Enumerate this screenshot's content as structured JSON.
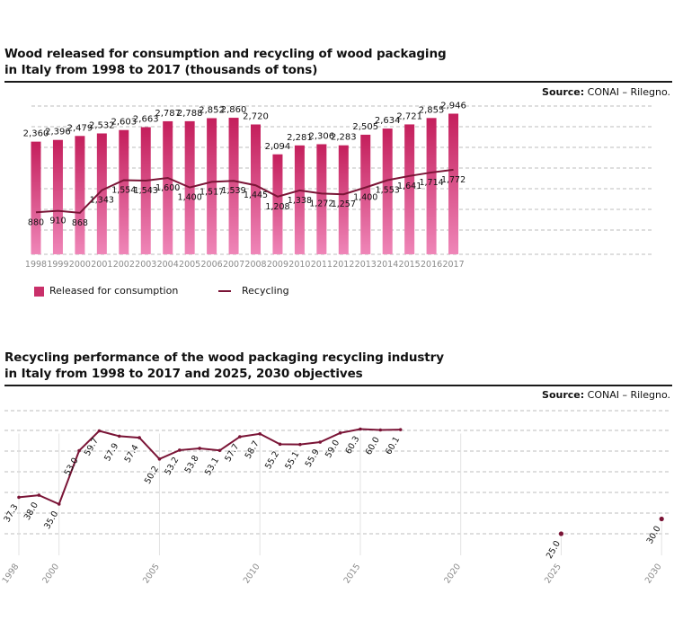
{
  "chart1": {
    "title_line1": "Wood released for consumption and recycling of wood packaging",
    "title_line2": "in Italy from 1998 to 2017 (thousands of tons)",
    "source_label": "Source:",
    "source_text": " CONAI – Rilegno.",
    "legend_bar": "Released for consumption",
    "legend_line": "Recycling"
  },
  "chart2": {
    "title_line1": "Recycling performance of the wood packaging recycling industry",
    "title_line2": "in Italy from 1998 to 2017 and 2025, 2030 objectives",
    "source_label": "Source:",
    "source_text": " CONAI – Rilegno."
  },
  "colors": {
    "bar_top": "#c41f5c",
    "bar_bottom": "#ef86b8",
    "line": "#7a1436",
    "grid": "#bdbdbd",
    "axis_text": "#8a8a8a"
  },
  "chart_data": [
    {
      "type": "bar",
      "title": "Wood released for consumption and recycling of wood packaging in Italy from 1998 to 2017 (thousands of tons)",
      "categories": [
        "1998",
        "1999",
        "2000",
        "2001",
        "2002",
        "2003",
        "2004",
        "2005",
        "2006",
        "2007",
        "2008",
        "2009",
        "2010",
        "2011",
        "2012",
        "2013",
        "2014",
        "2015",
        "2016",
        "2017"
      ],
      "series": [
        {
          "name": "Released for consumption",
          "type": "bar",
          "values": [
            2360,
            2396,
            2479,
            2532,
            2603,
            2663,
            2787,
            2788,
            2852,
            2860,
            2720,
            2094,
            2281,
            2306,
            2283,
            2505,
            2634,
            2721,
            2855,
            2946
          ],
          "labels": [
            "2,360",
            "2,396",
            "2,479",
            "2,532",
            "2,603",
            "2,663",
            "2,787",
            "2,788",
            "2,852",
            "2,860",
            "2,720",
            "2,094",
            "2,281",
            "2,306",
            "2,283",
            "2,505",
            "2,634",
            "2,721",
            "2,855",
            "2,946"
          ]
        },
        {
          "name": "Recycling",
          "type": "line",
          "values": [
            880,
            910,
            868,
            1343,
            1554,
            1543,
            1600,
            1400,
            1517,
            1539,
            1445,
            1208,
            1338,
            1272,
            1257,
            1400,
            1553,
            1641,
            1714,
            1772
          ],
          "labels": [
            "880",
            "910",
            "868",
            "1,343",
            "1,554",
            "1,543",
            "1,600",
            "1,400",
            "1,517",
            "1,539",
            "1,445",
            "1,208",
            "1,338",
            "1,272",
            "1,257",
            "1,400",
            "1,553",
            "1,641",
            "1,714",
            "1,772"
          ]
        }
      ],
      "ylim": [
        0,
        3200
      ],
      "grid": true,
      "legend": "bottom-left"
    },
    {
      "type": "line",
      "title": "Recycling performance of the wood packaging recycling industry in Italy from 1998 to 2017 and 2025, 2030 objectives",
      "x": [
        1998,
        1999,
        2000,
        2001,
        2002,
        2003,
        2004,
        2005,
        2006,
        2007,
        2008,
        2009,
        2010,
        2011,
        2012,
        2013,
        2014,
        2015,
        2016,
        2017
      ],
      "y": [
        37.3,
        38.0,
        35.0,
        53.0,
        59.7,
        57.9,
        57.4,
        50.2,
        53.2,
        53.8,
        53.1,
        57.7,
        58.7,
        55.2,
        55.1,
        55.9,
        59.0,
        60.3,
        60.0,
        60.1
      ],
      "labels": [
        "37.3",
        "38.0",
        "35.0",
        "53.0",
        "59.7",
        "57.9",
        "57.4",
        "50.2",
        "53.2",
        "53.8",
        "53.1",
        "57.7",
        "58.7",
        "55.2",
        "55.1",
        "55.9",
        "59.0",
        "60.3",
        "60.0",
        "60.1"
      ],
      "objectives": [
        {
          "x": 2025,
          "y": 25.0,
          "label": "25.0"
        },
        {
          "x": 2030,
          "y": 30.0,
          "label": "30.0"
        }
      ],
      "x_ticks": [
        "1998",
        "2000",
        "2005",
        "2010",
        "2015",
        "2020",
        "2025",
        "2030"
      ],
      "xlim": [
        1998,
        2030
      ],
      "ylim": [
        0,
        60
      ],
      "grid": true
    }
  ]
}
